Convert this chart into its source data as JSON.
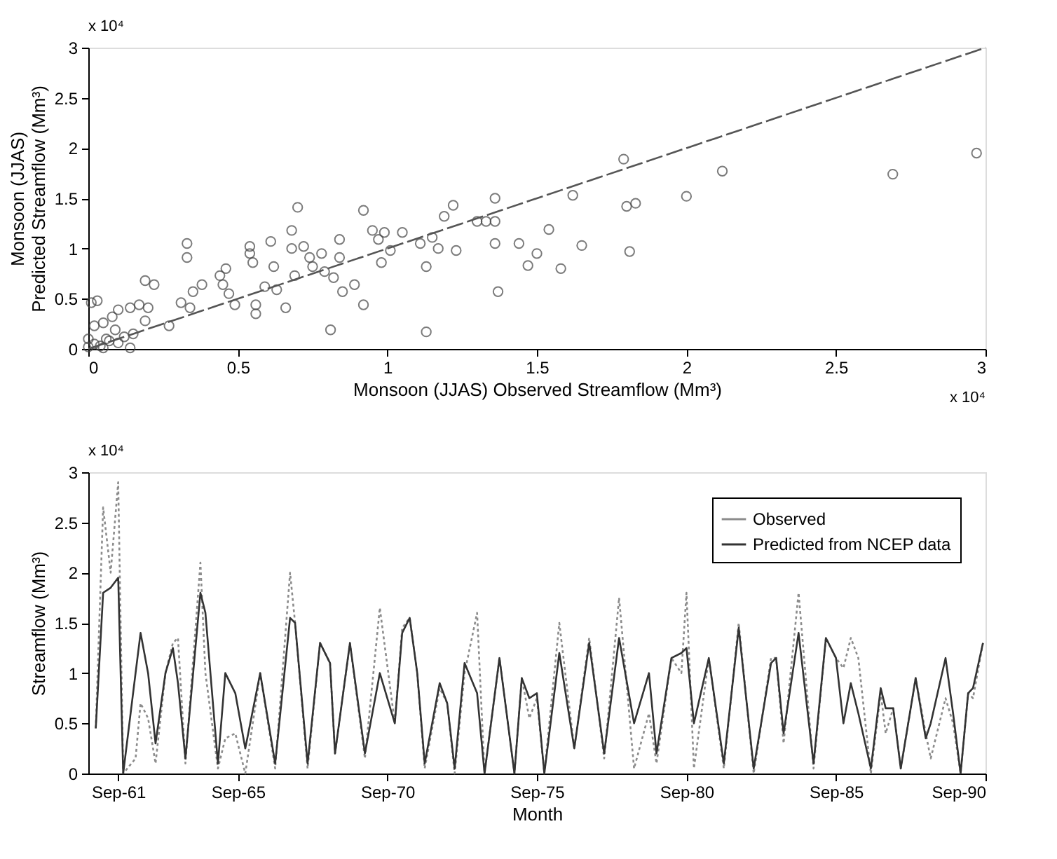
{
  "chart_data": [
    {
      "type": "scatter",
      "xlabel": "Monsoon (JJAS) Observed Streamflow (Mm³)",
      "ylabel": "Monsoon (JJAS)\nPredicted Streamflow (Mm³)",
      "annotations": [
        "x 10⁴",
        "x 10⁴"
      ],
      "grid": false,
      "xlim": [
        0,
        3
      ],
      "ylim": [
        0,
        3
      ],
      "xticks": [
        0,
        0.5,
        1,
        1.5,
        2,
        2.5,
        3
      ],
      "yticks": [
        0,
        0.5,
        1,
        1.5,
        2,
        2.5,
        3
      ],
      "series": [
        {
          "type": "scatter",
          "marker": "circle",
          "color": "#444444",
          "x": [
            0.01,
            0.03,
            0,
            0.02,
            0.05,
            0.08,
            0.1,
            0.14,
            0.17,
            0.2,
            0.19,
            0.22,
            0.19,
            0.14,
            0.09,
            0.06,
            0.05,
            0,
            0.02,
            0.04,
            0.07,
            0.1,
            0.12,
            0.15,
            0.27,
            0.31,
            0.33,
            0.33,
            0.34,
            0.35,
            0.38,
            0.44,
            0.45,
            0.46,
            0.47,
            0.49,
            0.54,
            0.54,
            0.55,
            0.56,
            0.56,
            0.59,
            0.61,
            0.62,
            0.63,
            0.66,
            0.68,
            0.68,
            0.7,
            0.69,
            0.72,
            0.74,
            0.75,
            0.78,
            0.79,
            0.81,
            0.82,
            0.84,
            0.84,
            0.85,
            0.89,
            0.92,
            0.92,
            0.95,
            0.97,
            0.98,
            1.01,
            0.99,
            1.05,
            1.11,
            1.13,
            1.13,
            1.15,
            1.17,
            1.19,
            1.22,
            1.23,
            1.3,
            1.33,
            1.36,
            1.36,
            1.36,
            1.37,
            1.44,
            1.47,
            1.5,
            1.54,
            1.58,
            1.62,
            1.65,
            1.79,
            1.8,
            1.83,
            1.81,
            2.0,
            2.12,
            2.69,
            2.97
          ],
          "values": [
            0.46,
            0.48,
            0.1,
            0.23,
            0.26,
            0.32,
            0.39,
            0.41,
            0.44,
            0.41,
            0.68,
            0.64,
            0.28,
            0.01,
            0.19,
            0.1,
            0.01,
            0.02,
            0.05,
            0.03,
            0.08,
            0.06,
            0.12,
            0.15,
            0.23,
            0.46,
            1.05,
            0.91,
            0.41,
            0.57,
            0.64,
            0.73,
            0.64,
            0.8,
            0.55,
            0.44,
            1.02,
            0.95,
            0.86,
            0.44,
            0.35,
            0.62,
            1.07,
            0.82,
            0.59,
            0.41,
            1.0,
            1.18,
            1.41,
            0.73,
            1.02,
            0.91,
            0.82,
            0.95,
            0.77,
            0.19,
            0.71,
            0.91,
            1.09,
            0.57,
            0.64,
            0.44,
            1.38,
            1.18,
            1.09,
            0.86,
            0.98,
            1.16,
            1.16,
            1.05,
            0.82,
            0.17,
            1.11,
            1.0,
            1.32,
            1.43,
            0.98,
            1.27,
            1.27,
            1.5,
            1.27,
            1.05,
            0.57,
            1.05,
            0.83,
            0.95,
            1.19,
            0.8,
            1.53,
            1.03,
            1.89,
            1.42,
            1.45,
            0.97,
            1.52,
            1.77,
            1.74,
            1.95
          ]
        },
        {
          "type": "line",
          "color": "#555555",
          "line_style": "dashed",
          "x": [
            0,
            3
          ],
          "values": [
            0,
            3
          ]
        }
      ]
    },
    {
      "type": "line",
      "xlabel": "Month",
      "ylabel": "Streamflow (Mm³)",
      "annotations": [
        "x 10⁴"
      ],
      "grid": false,
      "legend": "top right",
      "xlim": [
        "1960-09",
        "1990-09"
      ],
      "ylim": [
        0,
        3
      ],
      "xticks": [
        {
          "value": "1961-09",
          "label": "Sep-61"
        },
        {
          "value": "1965-09",
          "label": "Sep-65"
        },
        {
          "value": "1970-09",
          "label": "Sep-70"
        },
        {
          "value": "1975-09",
          "label": "Sep-75"
        },
        {
          "value": "1980-09",
          "label": "Sep-80"
        },
        {
          "value": "1985-09",
          "label": "Sep-85"
        },
        {
          "value": "1990-09",
          "label": "Sep-90"
        }
      ],
      "yticks": [
        0,
        0.5,
        1,
        1.5,
        2,
        2.5,
        3
      ],
      "x": [
        "1960-12",
        "1961-03",
        "1961-06",
        "1961-09",
        "1961-11",
        "1962-04",
        "1962-06",
        "1962-09",
        "1962-12",
        "1963-04",
        "1963-07",
        "1963-09",
        "1963-12",
        "1964-06",
        "1964-08",
        "1965-01",
        "1965-04",
        "1965-08",
        "1965-12",
        "1966-06",
        "1966-12",
        "1967-06",
        "1967-08",
        "1968-01",
        "1968-06",
        "1968-10",
        "1968-12",
        "1969-06",
        "1969-12",
        "1970-06",
        "1970-12",
        "1971-03",
        "1971-06",
        "1971-09",
        "1971-12",
        "1972-06",
        "1972-09",
        "1972-12",
        "1973-04",
        "1973-09",
        "1973-12",
        "1974-06",
        "1974-12",
        "1975-03",
        "1975-06",
        "1975-09",
        "1975-12",
        "1976-06",
        "1976-12",
        "1977-06",
        "1977-12",
        "1978-06",
        "1978-12",
        "1979-06",
        "1979-09",
        "1980-03",
        "1980-07",
        "1980-09",
        "1980-12",
        "1981-06",
        "1981-12",
        "1982-06",
        "1982-12",
        "1983-07",
        "1983-09",
        "1983-12",
        "1984-06",
        "1984-12",
        "1985-05",
        "1985-09",
        "1985-12",
        "1986-03",
        "1986-06",
        "1986-11",
        "1987-03",
        "1987-05",
        "1987-08",
        "1987-11",
        "1988-05",
        "1988-09",
        "1988-11",
        "1989-05",
        "1989-08",
        "1989-11",
        "1990-02",
        "1990-04",
        "1990-08"
      ],
      "series": [
        {
          "name": "Observed",
          "color": "#8c8c8c",
          "line_style": "dotted",
          "values": [
            0.45,
            2.65,
            2.0,
            2.9,
            0,
            0.15,
            0.7,
            0.55,
            0.1,
            1.0,
            1.3,
            1.35,
            0.1,
            2.1,
            1.0,
            0.05,
            0.35,
            0.4,
            0,
            1.0,
            0.05,
            2.0,
            1.5,
            0.05,
            1.3,
            1.1,
            0.2,
            1.3,
            0.15,
            1.65,
            0.5,
            1.45,
            1.55,
            1.0,
            0.05,
            0.85,
            0.7,
            0,
            1.0,
            1.6,
            0,
            1.15,
            0,
            0.95,
            0.55,
            0.75,
            0,
            1.5,
            0.25,
            1.35,
            0.15,
            1.75,
            0.05,
            0.6,
            0.1,
            1.15,
            1.0,
            1.8,
            0.05,
            1.15,
            0.05,
            1.5,
            0,
            1.15,
            1.15,
            0.3,
            1.8,
            0.05,
            1.35,
            1.15,
            1.05,
            1.35,
            1.15,
            0,
            0.8,
            0.4,
            0.65,
            0.05,
            0.95,
            0.4,
            0.15,
            0.75,
            0.5,
            0,
            0.8,
            0.75,
            1.3
          ]
        },
        {
          "name": "Predicted from NCEP data",
          "color": "#333333",
          "line_style": "solid",
          "values": [
            0.45,
            1.8,
            1.85,
            1.95,
            0,
            1.0,
            1.4,
            1.0,
            0.3,
            1.0,
            1.25,
            0.9,
            0.15,
            1.8,
            1.6,
            0.1,
            1.0,
            0.8,
            0.25,
            1.0,
            0.1,
            1.55,
            1.5,
            0.1,
            1.3,
            1.1,
            0.2,
            1.3,
            0.2,
            1.0,
            0.5,
            1.4,
            1.55,
            1.0,
            0.1,
            0.9,
            0.7,
            0.05,
            1.1,
            0.8,
            0,
            1.15,
            0,
            0.95,
            0.75,
            0.8,
            0,
            1.2,
            0.25,
            1.3,
            0.2,
            1.35,
            0.5,
            1.0,
            0.2,
            1.15,
            1.2,
            1.25,
            0.5,
            1.15,
            0.1,
            1.45,
            0.05,
            1.1,
            1.15,
            0.4,
            1.4,
            0.1,
            1.35,
            1.15,
            0.5,
            0.9,
            0.6,
            0.05,
            0.85,
            0.65,
            0.65,
            0.05,
            0.95,
            0.35,
            0.5,
            1.15,
            0.6,
            0,
            0.8,
            0.85,
            1.3
          ]
        }
      ]
    }
  ]
}
